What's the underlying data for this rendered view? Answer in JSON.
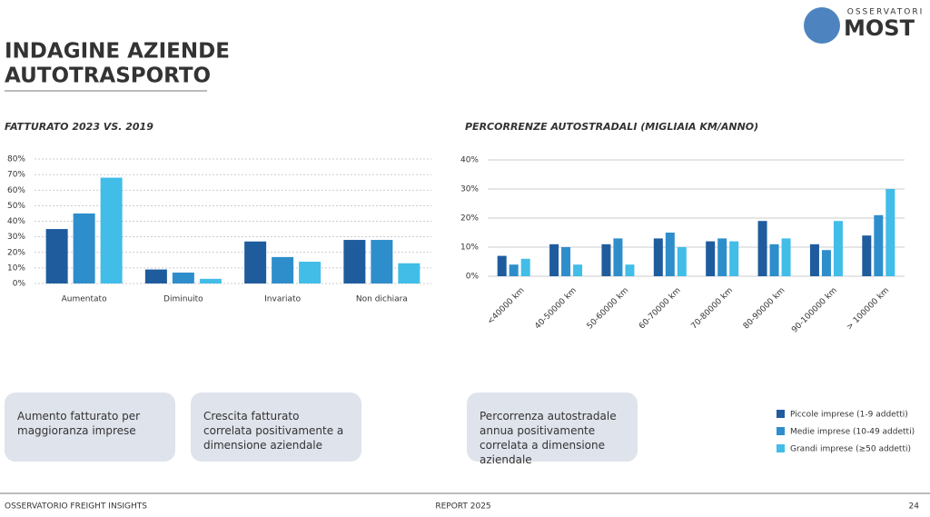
{
  "header": {
    "title": [
      "INDAGINE AZIENDE",
      "AUTOTRASPORTO"
    ],
    "logo_top": "OSSERVATORI",
    "logo_main": "MOST"
  },
  "chart_data": [
    {
      "type": "bar",
      "title": "FATTURATO 2023 VS. 2019",
      "categories": [
        "Aumentato",
        "Diminuito",
        "Invariato",
        "Non dichiara"
      ],
      "series": [
        {
          "name": "Piccole imprese (1-9 addetti)",
          "color": "#1f5c9e",
          "values": [
            35,
            9,
            27,
            28
          ]
        },
        {
          "name": "Medie imprese (10-49 addetti)",
          "color": "#2e8ecb",
          "values": [
            45,
            7,
            17,
            28
          ]
        },
        {
          "name": "Grandi imprese (≥50 addetti)",
          "color": "#41bde8",
          "values": [
            68,
            3,
            14,
            13
          ]
        }
      ],
      "ylim": [
        0,
        80
      ],
      "yticks": [
        {
          "value": 0,
          "label": "0%"
        },
        {
          "value": 10,
          "label": "10%"
        },
        {
          "value": 20,
          "label": "20%"
        },
        {
          "value": 30,
          "label": "30%"
        },
        {
          "value": 40,
          "label": "40%"
        },
        {
          "value": 50,
          "label": "50%"
        },
        {
          "value": 60,
          "label": "60%"
        },
        {
          "value": 70,
          "label": "70%"
        },
        {
          "value": 80,
          "label": "80%"
        }
      ],
      "grid": true
    },
    {
      "type": "bar",
      "title": "PERCORRENZE AUTOSTRADALI (MIGLIAIA KM/ANNO)",
      "categories": [
        "<40000 km",
        "40-50000 km",
        "50-60000 km",
        "60-70000 km",
        "70-80000 km",
        "80-90000 km",
        "90-100000 km",
        "> 100000 km"
      ],
      "series": [
        {
          "color": "#1f5c9e",
          "values": [
            7,
            11,
            11,
            13,
            12,
            19,
            11,
            14
          ]
        },
        {
          "color": "#2e8ecb",
          "values": [
            4,
            10,
            13,
            15,
            13,
            11,
            9,
            21
          ]
        },
        {
          "color": "#41bde8",
          "values": [
            6,
            4,
            4,
            10,
            12,
            13,
            19,
            30
          ]
        }
      ],
      "ylim": [
        0,
        40
      ],
      "yticks": [
        {
          "value": 0,
          "label": "0%"
        },
        {
          "value": 10,
          "label": "10%"
        },
        {
          "value": 20,
          "label": "20%"
        },
        {
          "value": 30,
          "label": "30%"
        },
        {
          "value": 40,
          "label": "40%"
        }
      ],
      "grid": true
    }
  ],
  "notes": [
    "Aumento fatturato per maggioranza imprese",
    "Crescita fatturato correlata positivamente a dimensione aziendale",
    "Percorrenza autostradale annua positivamente correlata a dimensione aziendale"
  ],
  "footer": {
    "left": "OSSERVATORIO FREIGHT INSIGHTS",
    "center": "REPORT 2025",
    "page": "24"
  }
}
